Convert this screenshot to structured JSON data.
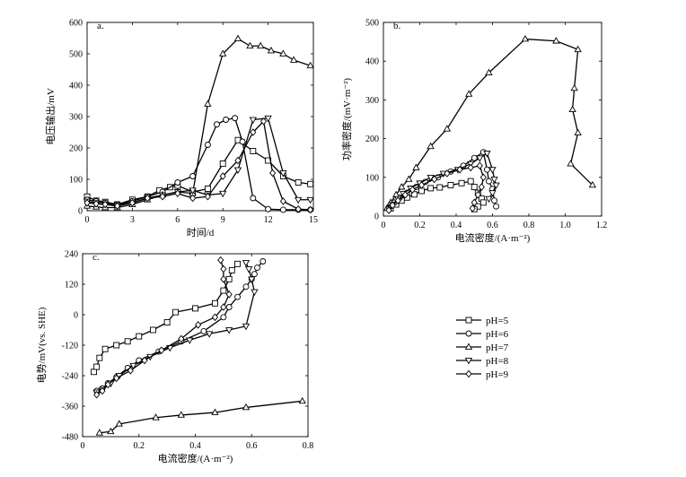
{
  "legend": {
    "items": [
      {
        "name": "pH=5",
        "marker": "square"
      },
      {
        "name": "pH=6",
        "marker": "circle"
      },
      {
        "name": "pH=7",
        "marker": "triangle-up"
      },
      {
        "name": "pH=8",
        "marker": "triangle-down"
      },
      {
        "name": "pH=9",
        "marker": "diamond"
      }
    ]
  },
  "chart_data": [
    {
      "id": "a",
      "panel_label": "a.",
      "type": "line",
      "xlabel": "时间/d",
      "ylabel": "电压输出/mV",
      "xlim": [
        0,
        15
      ],
      "ylim": [
        0,
        600
      ],
      "xticks": [
        0,
        3,
        6,
        9,
        12,
        15
      ],
      "yticks": [
        0,
        100,
        200,
        300,
        400,
        500,
        600
      ],
      "series": [
        {
          "name": "pH=5",
          "marker": "square",
          "x": [
            0,
            0.6,
            1.2,
            2,
            3,
            4,
            4.8,
            5.5,
            6,
            7,
            8,
            9,
            10,
            11,
            12,
            13,
            14,
            14.8
          ],
          "y": [
            45,
            32,
            28,
            20,
            35,
            45,
            65,
            75,
            80,
            60,
            70,
            150,
            225,
            190,
            160,
            110,
            90,
            85
          ]
        },
        {
          "name": "pH=6",
          "marker": "circle",
          "x": [
            0,
            0.6,
            1.2,
            2,
            3,
            4,
            5,
            6,
            7,
            8,
            8.6,
            9.2,
            9.8,
            10.3,
            11,
            12,
            13,
            14,
            14.8
          ],
          "y": [
            35,
            30,
            25,
            20,
            30,
            45,
            60,
            90,
            110,
            210,
            275,
            290,
            295,
            220,
            40,
            5,
            3,
            3,
            3
          ]
        },
        {
          "name": "pH=7",
          "marker": "triangle-up",
          "x": [
            0,
            0.6,
            1.2,
            2,
            3,
            4,
            5,
            6,
            7,
            8,
            9,
            10,
            10.8,
            11.5,
            12.2,
            13,
            13.7,
            14.8
          ],
          "y": [
            15,
            12,
            10,
            10,
            20,
            35,
            50,
            60,
            55,
            340,
            500,
            548,
            525,
            525,
            510,
            500,
            480,
            462
          ]
        },
        {
          "name": "pH=8",
          "marker": "triangle-down",
          "x": [
            0,
            0.6,
            1.2,
            2,
            3,
            4,
            5,
            6,
            7,
            8,
            9,
            10,
            11,
            12,
            13,
            14,
            14.8
          ],
          "y": [
            30,
            25,
            20,
            18,
            25,
            40,
            50,
            60,
            65,
            50,
            55,
            130,
            290,
            295,
            120,
            35,
            35
          ]
        },
        {
          "name": "pH=9",
          "marker": "diamond",
          "x": [
            0,
            0.6,
            1.2,
            2,
            3,
            4,
            5,
            6,
            7,
            8,
            9,
            10,
            11,
            11.7,
            12.3,
            13,
            14,
            14.8
          ],
          "y": [
            25,
            22,
            20,
            15,
            25,
            40,
            45,
            55,
            40,
            45,
            110,
            160,
            250,
            285,
            120,
            30,
            5,
            3
          ]
        }
      ]
    },
    {
      "id": "b",
      "panel_label": "b.",
      "type": "line",
      "xlabel": "电流密度/(A·m⁻²)",
      "ylabel": "功率密度/(mV·m⁻²)",
      "xlim": [
        0,
        1.2
      ],
      "ylim": [
        0,
        500
      ],
      "xticks": [
        "0",
        "0.2",
        "0.4",
        "0.6",
        "0.8",
        "1.0",
        "1.2"
      ],
      "yticks": [
        0,
        100,
        200,
        300,
        400,
        500
      ],
      "series": [
        {
          "name": "pH=5",
          "marker": "square",
          "x": [
            0.04,
            0.07,
            0.1,
            0.13,
            0.17,
            0.21,
            0.26,
            0.31,
            0.37,
            0.43,
            0.48,
            0.5,
            0.52,
            0.54,
            0.55,
            0.52,
            0.5
          ],
          "y": [
            20,
            30,
            40,
            48,
            56,
            65,
            72,
            74,
            80,
            85,
            90,
            75,
            60,
            45,
            35,
            25,
            18
          ]
        },
        {
          "name": "pH=6",
          "marker": "circle",
          "x": [
            0.03,
            0.06,
            0.09,
            0.13,
            0.18,
            0.23,
            0.3,
            0.37,
            0.44,
            0.5,
            0.55,
            0.57,
            0.58,
            0.6,
            0.61,
            0.62
          ],
          "y": [
            20,
            35,
            48,
            60,
            75,
            88,
            100,
            115,
            130,
            150,
            165,
            120,
            90,
            70,
            40,
            25
          ]
        },
        {
          "name": "pH=7",
          "marker": "triangle-up",
          "x": [
            0.02,
            0.04,
            0.07,
            0.1,
            0.14,
            0.18,
            0.26,
            0.35,
            0.47,
            0.58,
            0.78,
            0.95,
            1.07,
            1.05,
            1.04,
            1.07,
            1.03,
            1.15
          ],
          "y": [
            20,
            35,
            55,
            75,
            95,
            125,
            180,
            225,
            315,
            370,
            457,
            452,
            430,
            330,
            275,
            215,
            135,
            80
          ]
        },
        {
          "name": "pH=8",
          "marker": "triangle-down",
          "x": [
            0.03,
            0.05,
            0.08,
            0.11,
            0.15,
            0.2,
            0.26,
            0.33,
            0.41,
            0.48,
            0.53,
            0.57,
            0.6,
            0.61,
            0.62,
            0.6,
            0.58
          ],
          "y": [
            18,
            30,
            45,
            58,
            72,
            85,
            100,
            110,
            120,
            135,
            150,
            162,
            120,
            95,
            80,
            60,
            45
          ]
        },
        {
          "name": "pH=9",
          "marker": "diamond",
          "x": [
            0.03,
            0.05,
            0.08,
            0.12,
            0.16,
            0.21,
            0.28,
            0.35,
            0.42,
            0.48,
            0.53,
            0.55,
            0.54,
            0.52,
            0.5,
            0.49
          ],
          "y": [
            15,
            28,
            40,
            55,
            68,
            80,
            95,
            110,
            120,
            125,
            130,
            100,
            75,
            55,
            35,
            20
          ]
        }
      ]
    },
    {
      "id": "c",
      "panel_label": "c.",
      "type": "line",
      "xlabel": "电流密度/(A·m⁻²)",
      "ylabel": "电势/mV(vs. SHE)",
      "xlim": [
        0,
        0.8
      ],
      "ylim": [
        -480,
        240
      ],
      "xticks": [
        "0",
        "0.2",
        "0.4",
        "0.6",
        "0.8"
      ],
      "yticks": [
        240,
        120,
        0,
        -120,
        -240,
        -360,
        -480
      ],
      "series": [
        {
          "name": "pH=5",
          "marker": "square",
          "x": [
            0.04,
            0.05,
            0.06,
            0.08,
            0.12,
            0.16,
            0.2,
            0.25,
            0.3,
            0.33,
            0.4,
            0.47,
            0.5,
            0.52,
            0.53,
            0.55
          ],
          "y": [
            -225,
            -205,
            -170,
            -135,
            -120,
            -105,
            -85,
            -60,
            -30,
            10,
            25,
            45,
            95,
            140,
            175,
            200
          ]
        },
        {
          "name": "pH=6",
          "marker": "circle",
          "x": [
            0.05,
            0.07,
            0.09,
            0.12,
            0.16,
            0.2,
            0.27,
            0.35,
            0.43,
            0.5,
            0.52,
            0.55,
            0.58,
            0.6,
            0.61,
            0.62,
            0.64
          ],
          "y": [
            -300,
            -290,
            -270,
            -245,
            -210,
            -180,
            -145,
            -105,
            -65,
            -10,
            30,
            70,
            110,
            140,
            160,
            185,
            210
          ]
        },
        {
          "name": "pH=7",
          "marker": "triangle-up",
          "x": [
            0.06,
            0.1,
            0.13,
            0.26,
            0.35,
            0.47,
            0.58,
            0.78
          ],
          "y": [
            -465,
            -460,
            -430,
            -405,
            -395,
            -385,
            -365,
            -340
          ]
        },
        {
          "name": "pH=8",
          "marker": "triangle-down",
          "x": [
            0.05,
            0.07,
            0.1,
            0.13,
            0.18,
            0.24,
            0.31,
            0.38,
            0.45,
            0.52,
            0.58,
            0.61,
            0.6,
            0.59,
            0.58
          ],
          "y": [
            -305,
            -295,
            -270,
            -240,
            -200,
            -165,
            -130,
            -100,
            -75,
            -60,
            -45,
            90,
            140,
            180,
            205
          ]
        },
        {
          "name": "pH=9",
          "marker": "diamond",
          "x": [
            0.05,
            0.07,
            0.09,
            0.12,
            0.17,
            0.22,
            0.28,
            0.35,
            0.41,
            0.47,
            0.5,
            0.52,
            0.5,
            0.5,
            0.49
          ],
          "y": [
            -315,
            -300,
            -275,
            -250,
            -220,
            -180,
            -140,
            -95,
            -40,
            -10,
            30,
            80,
            140,
            180,
            215
          ]
        }
      ]
    }
  ]
}
